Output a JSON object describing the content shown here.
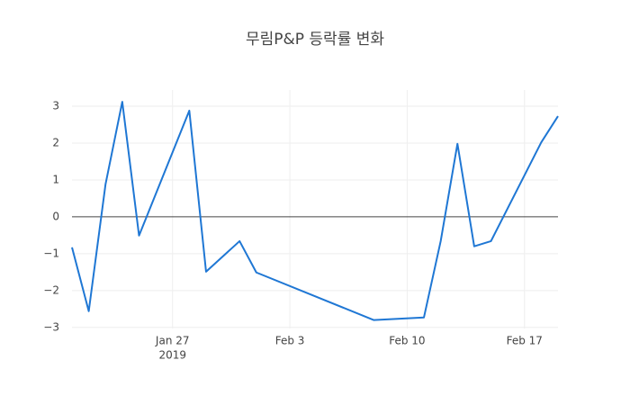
{
  "chart_data": {
    "type": "line",
    "title": "무림P&P 등락률 변화",
    "x": [
      "2019-01-21",
      "2019-01-22",
      "2019-01-23",
      "2019-01-24",
      "2019-01-25",
      "2019-01-28",
      "2019-01-29",
      "2019-01-31",
      "2019-02-01",
      "2019-02-08",
      "2019-02-11",
      "2019-02-12",
      "2019-02-13",
      "2019-02-14",
      "2019-02-15",
      "2019-02-18",
      "2019-02-19"
    ],
    "values": [
      -0.83,
      -2.56,
      0.88,
      3.12,
      -0.51,
      2.88,
      -1.49,
      -0.66,
      -1.51,
      -2.8,
      -2.73,
      -0.66,
      1.98,
      -0.8,
      -0.66,
      2.02,
      2.73
    ],
    "color": "#1f77d4",
    "xlim": [
      "2019-01-21",
      "2019-02-19"
    ],
    "xticks": [
      {
        "value": "2019-01-27",
        "label": "Jan 27",
        "sublabel": "2019"
      },
      {
        "value": "2019-02-03",
        "label": "Feb 3"
      },
      {
        "value": "2019-02-10",
        "label": "Feb 10"
      },
      {
        "value": "2019-02-17",
        "label": "Feb 17"
      }
    ],
    "ylim": [
      -3.03,
      3.44
    ],
    "yticks": [
      {
        "value": -3,
        "label": "−3"
      },
      {
        "value": -2,
        "label": "−2"
      },
      {
        "value": -1,
        "label": "−1"
      },
      0,
      1,
      2,
      3
    ],
    "grid": true
  }
}
